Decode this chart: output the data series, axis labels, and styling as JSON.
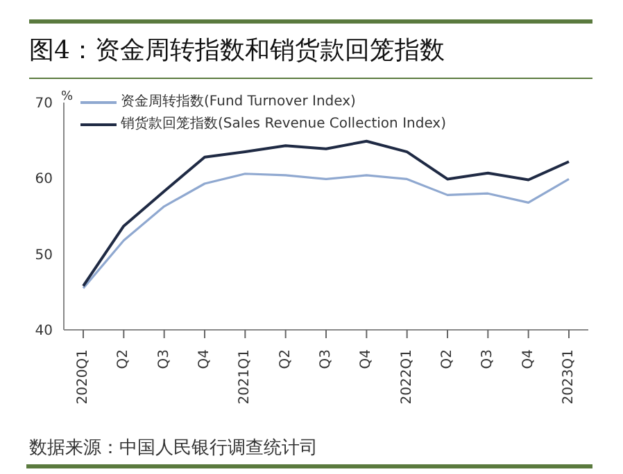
{
  "chart_data": {
    "type": "line",
    "title": "图4：资金周转指数和销货款回笼指数",
    "ylabel": "%",
    "categories": [
      "2020Q1",
      "Q2",
      "Q3",
      "Q4",
      "2021Q1",
      "Q2",
      "Q3",
      "Q4",
      "2022Q1",
      "Q2",
      "Q3",
      "Q4",
      "2023Q1"
    ],
    "series": [
      {
        "name": "资金周转指数(Fund Turnover Index)",
        "color": "#8fa8d0",
        "values": [
          45.5,
          51.8,
          56.3,
          59.3,
          60.6,
          60.4,
          59.9,
          60.4,
          59.9,
          57.8,
          58.0,
          56.8,
          59.9
        ]
      },
      {
        "name": "销货款回笼指数(Sales Revenue Collection Index)",
        "color": "#1f2a44",
        "values": [
          45.8,
          53.7,
          58.3,
          62.8,
          63.5,
          64.3,
          63.9,
          64.9,
          63.5,
          59.9,
          60.7,
          59.8,
          62.2
        ]
      }
    ],
    "ylim": [
      40,
      70
    ],
    "yticks": [
      40,
      50,
      60,
      70
    ],
    "grid": false,
    "legend": "top left",
    "marker": "none",
    "line_style": "solid",
    "annotations": [
      "数据来源：中国人民银行调查统计司"
    ]
  }
}
